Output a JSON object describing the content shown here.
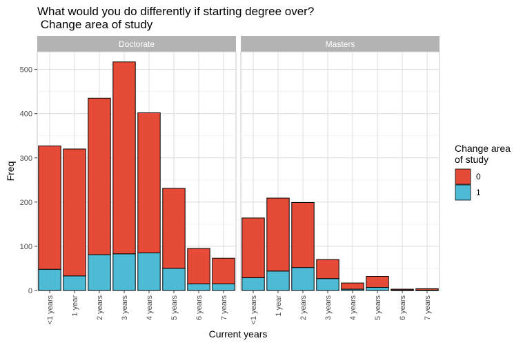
{
  "title_line1": "What would you do differently if starting degree over?",
  "title_line2": " Change area of study",
  "chart_data": {
    "type": "bar",
    "stacked": true,
    "x": [
      "<1 years",
      "1 year",
      "2 years",
      "3 years",
      "4 years",
      "5 years",
      "6 years",
      "7 years"
    ],
    "xlabel": "Current years",
    "ylabel": "Freq",
    "ylim": [
      0,
      540
    ],
    "yticks": [
      0,
      100,
      200,
      300,
      400,
      500
    ],
    "grid": true,
    "legend": {
      "title_line1": "Change area",
      "title_line2": "of study",
      "placement": "right",
      "entries": [
        {
          "label": "0",
          "color": "#e64b37"
        },
        {
          "label": "1",
          "color": "#4dbbd5"
        }
      ]
    },
    "panels": [
      {
        "name": "Doctorate",
        "series": [
          {
            "name": "1",
            "values": [
              48,
              33,
              81,
              83,
              85,
              50,
              15,
              15
            ]
          },
          {
            "name": "0",
            "values": [
              279,
              287,
              354,
              434,
              317,
              181,
              80,
              58
            ]
          }
        ]
      },
      {
        "name": "Masters",
        "series": [
          {
            "name": "1",
            "values": [
              29,
              44,
              52,
              27,
              3,
              7,
              1,
              1
            ]
          },
          {
            "name": "0",
            "values": [
              135,
              165,
              147,
              43,
              14,
              25,
              2,
              3
            ]
          }
        ]
      }
    ]
  }
}
